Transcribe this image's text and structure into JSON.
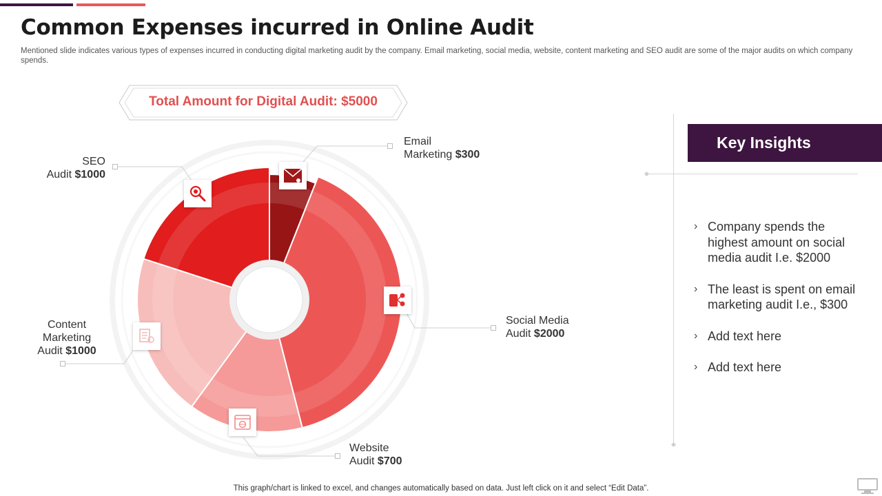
{
  "header": {
    "title": "Common Expenses incurred in Online Audit",
    "subtitle": "Mentioned slide indicates various types of expenses incurred in conducting digital marketing audit by the company. Email marketing, social media, website, content marketing and SEO audit are some of the major audits on which company spends."
  },
  "total": {
    "label": "Total Amount for Digital Audit: $5000"
  },
  "chart_data": {
    "type": "pie",
    "title": "",
    "categories": [
      "Email Marketing",
      "Social Media Audit",
      "Website Audit",
      "Content Marketing Audit",
      "SEO Audit"
    ],
    "values": [
      300,
      2000,
      700,
      1000,
      1000
    ],
    "series": [
      {
        "values": [
          300,
          2000,
          700,
          1000,
          1000
        ]
      }
    ],
    "colors": [
      "#981515",
      "#ec5756",
      "#f59a98",
      "#f7bdbb",
      "#e11d1d"
    ],
    "donut": true,
    "labels": [
      {
        "line1": "Email",
        "line2": "Marketing ",
        "amount": "$300"
      },
      {
        "line1": "Social Media",
        "line2": "Audit ",
        "amount": "$2000"
      },
      {
        "line1": "Website",
        "line2": "Audit ",
        "amount": "$700"
      },
      {
        "line1": "Content",
        "line2": "Marketing",
        "line3": "Audit ",
        "amount": "$1000"
      },
      {
        "line1": "SEO",
        "line2": "Audit ",
        "amount": "$1000"
      }
    ],
    "icons": [
      "email-envelope-icon",
      "social-share-icon",
      "website-browser-icon",
      "content-document-icon",
      "seo-magnifier-icon"
    ]
  },
  "insights": {
    "title": "Key Insights",
    "items": [
      "Company spends the highest amount on social media audit I.e. $2000",
      "The least is spent on email marketing audit I.e., $300",
      "Add text here",
      "Add text here"
    ]
  },
  "footer": {
    "note": "This graph/chart is linked to excel,  and changes automatically based on data. Just left click on it and select “Edit Data”."
  }
}
